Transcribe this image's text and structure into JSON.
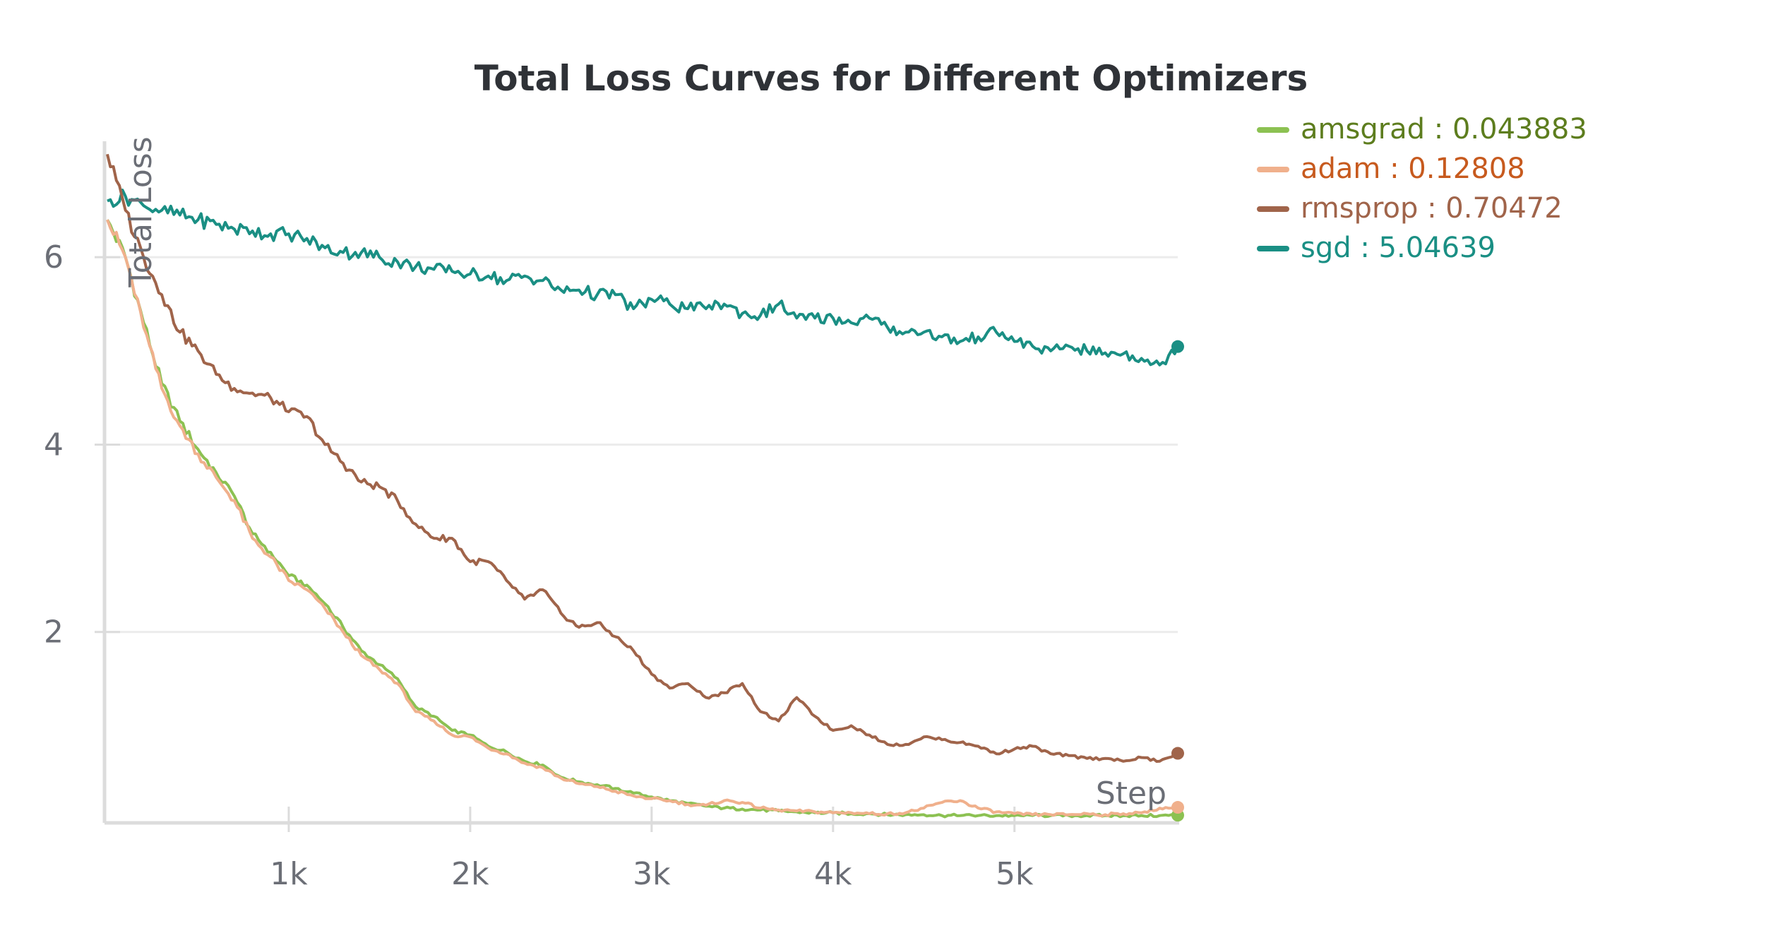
{
  "chart_data": {
    "type": "line",
    "title": "Total Loss Curves for Different Optimizers",
    "xlabel": "Step",
    "ylabel": "Total Loss",
    "x_ticks": [
      {
        "value": 1000,
        "label": "1k"
      },
      {
        "value": 2000,
        "label": "2k"
      },
      {
        "value": 3000,
        "label": "3k"
      },
      {
        "value": 4000,
        "label": "4k"
      },
      {
        "value": 5000,
        "label": "5k"
      }
    ],
    "y_ticks": [
      {
        "value": 2,
        "label": "2"
      },
      {
        "value": 4,
        "label": "4"
      },
      {
        "value": 6,
        "label": "6"
      }
    ],
    "xlim": [
      0,
      5900
    ],
    "ylim": [
      0,
      7.2
    ],
    "grid": "horizontal",
    "legend_position": "right",
    "series": [
      {
        "name": "amsgrad",
        "legend_label": "amsgrad : 0.043883",
        "color": "#8cc152",
        "text_color": "#5d7d1e",
        "x": [
          0,
          100,
          200,
          300,
          400,
          500,
          600,
          700,
          800,
          900,
          1000,
          1100,
          1200,
          1300,
          1400,
          1500,
          1600,
          1700,
          1800,
          1900,
          2000,
          2100,
          2200,
          2300,
          2400,
          2500,
          2600,
          2700,
          2800,
          2900,
          3000,
          3100,
          3200,
          3300,
          3400,
          3500,
          3600,
          3700,
          3800,
          3900,
          4000,
          4100,
          4200,
          4300,
          4400,
          4500,
          4600,
          4700,
          4800,
          4900,
          5000,
          5100,
          5200,
          5300,
          5400,
          5500,
          5600,
          5700,
          5800,
          5900
        ],
        "y": [
          6.4,
          6.0,
          5.3,
          4.65,
          4.25,
          3.95,
          3.7,
          3.45,
          3.05,
          2.85,
          2.6,
          2.5,
          2.3,
          2.05,
          1.8,
          1.65,
          1.5,
          1.2,
          1.1,
          0.95,
          0.9,
          0.78,
          0.72,
          0.62,
          0.58,
          0.45,
          0.4,
          0.37,
          0.33,
          0.28,
          0.24,
          0.2,
          0.17,
          0.14,
          0.12,
          0.11,
          0.1,
          0.09,
          0.08,
          0.07,
          0.07,
          0.06,
          0.06,
          0.05,
          0.05,
          0.05,
          0.04,
          0.04,
          0.04,
          0.04,
          0.04,
          0.04,
          0.04,
          0.04,
          0.04,
          0.04,
          0.04,
          0.04,
          0.04,
          0.043883
        ]
      },
      {
        "name": "adam",
        "legend_label": "adam : 0.12808",
        "color": "#f0b08c",
        "text_color": "#c75a1e",
        "x": [
          0,
          100,
          200,
          300,
          400,
          500,
          600,
          700,
          800,
          900,
          1000,
          1100,
          1200,
          1300,
          1400,
          1500,
          1600,
          1700,
          1800,
          1900,
          2000,
          2100,
          2200,
          2300,
          2400,
          2500,
          2600,
          2700,
          2800,
          2900,
          3000,
          3100,
          3200,
          3300,
          3400,
          3500,
          3600,
          3700,
          3800,
          3900,
          4000,
          4100,
          4200,
          4300,
          4400,
          4500,
          4600,
          4700,
          4800,
          4900,
          5000,
          5100,
          5200,
          5300,
          5400,
          5500,
          5600,
          5700,
          5800,
          5900
        ],
        "y": [
          6.4,
          6.0,
          5.25,
          4.6,
          4.2,
          3.9,
          3.65,
          3.4,
          3.0,
          2.8,
          2.55,
          2.45,
          2.25,
          2.0,
          1.75,
          1.6,
          1.45,
          1.15,
          1.05,
          0.9,
          0.88,
          0.76,
          0.7,
          0.6,
          0.55,
          0.44,
          0.38,
          0.35,
          0.3,
          0.25,
          0.22,
          0.2,
          0.16,
          0.15,
          0.2,
          0.18,
          0.12,
          0.1,
          0.09,
          0.08,
          0.07,
          0.07,
          0.06,
          0.06,
          0.07,
          0.12,
          0.18,
          0.2,
          0.12,
          0.08,
          0.06,
          0.05,
          0.05,
          0.05,
          0.06,
          0.05,
          0.06,
          0.07,
          0.12,
          0.12808
        ]
      },
      {
        "name": "rmsprop",
        "legend_label": "rmsprop : 0.70472",
        "color": "#a0644a",
        "text_color": "#a0644a",
        "x": [
          0,
          100,
          200,
          300,
          400,
          500,
          600,
          700,
          800,
          900,
          1000,
          1100,
          1200,
          1300,
          1400,
          1500,
          1600,
          1700,
          1800,
          1900,
          2000,
          2100,
          2200,
          2300,
          2400,
          2500,
          2600,
          2700,
          2800,
          2900,
          3000,
          3100,
          3200,
          3300,
          3400,
          3500,
          3600,
          3700,
          3800,
          3900,
          4000,
          4100,
          4200,
          4300,
          4400,
          4500,
          4600,
          4700,
          4800,
          4900,
          5000,
          5100,
          5200,
          5300,
          5400,
          5500,
          5600,
          5700,
          5800,
          5900
        ],
        "y": [
          7.1,
          6.5,
          6.0,
          5.6,
          5.2,
          5.0,
          4.75,
          4.6,
          4.55,
          4.5,
          4.35,
          4.3,
          4.0,
          3.8,
          3.6,
          3.55,
          3.4,
          3.15,
          3.0,
          3.0,
          2.75,
          2.75,
          2.55,
          2.35,
          2.45,
          2.2,
          2.05,
          2.1,
          1.95,
          1.8,
          1.55,
          1.4,
          1.45,
          1.3,
          1.35,
          1.45,
          1.15,
          1.05,
          1.3,
          1.1,
          0.95,
          1.0,
          0.9,
          0.8,
          0.8,
          0.88,
          0.85,
          0.82,
          0.78,
          0.7,
          0.75,
          0.78,
          0.7,
          0.68,
          0.65,
          0.65,
          0.62,
          0.66,
          0.62,
          0.70472
        ]
      },
      {
        "name": "sgd",
        "legend_label": "sgd : 5.04639",
        "color": "#1a8f84",
        "text_color": "#1a8f84",
        "x": [
          0,
          100,
          200,
          300,
          400,
          500,
          600,
          700,
          800,
          900,
          1000,
          1100,
          1200,
          1300,
          1400,
          1500,
          1600,
          1700,
          1800,
          1900,
          2000,
          2100,
          2200,
          2300,
          2400,
          2500,
          2600,
          2700,
          2800,
          2900,
          3000,
          3100,
          3200,
          3300,
          3400,
          3500,
          3600,
          3700,
          3800,
          3900,
          4000,
          4100,
          4200,
          4300,
          4400,
          4500,
          4600,
          4700,
          4800,
          4900,
          5000,
          5100,
          5200,
          5300,
          5400,
          5500,
          5600,
          5700,
          5800,
          5900
        ],
        "y": [
          6.6,
          6.65,
          6.55,
          6.5,
          6.45,
          6.4,
          6.35,
          6.3,
          6.28,
          6.25,
          6.25,
          6.2,
          6.1,
          6.05,
          6.05,
          6.0,
          5.95,
          5.9,
          5.87,
          5.85,
          5.82,
          5.8,
          5.75,
          5.8,
          5.75,
          5.65,
          5.65,
          5.6,
          5.6,
          5.45,
          5.55,
          5.5,
          5.45,
          5.45,
          5.5,
          5.4,
          5.38,
          5.5,
          5.35,
          5.35,
          5.35,
          5.3,
          5.35,
          5.25,
          5.2,
          5.2,
          5.15,
          5.1,
          5.15,
          5.2,
          5.1,
          5.05,
          5.0,
          5.05,
          5.0,
          4.98,
          4.97,
          4.92,
          4.85,
          5.04639
        ]
      }
    ]
  }
}
